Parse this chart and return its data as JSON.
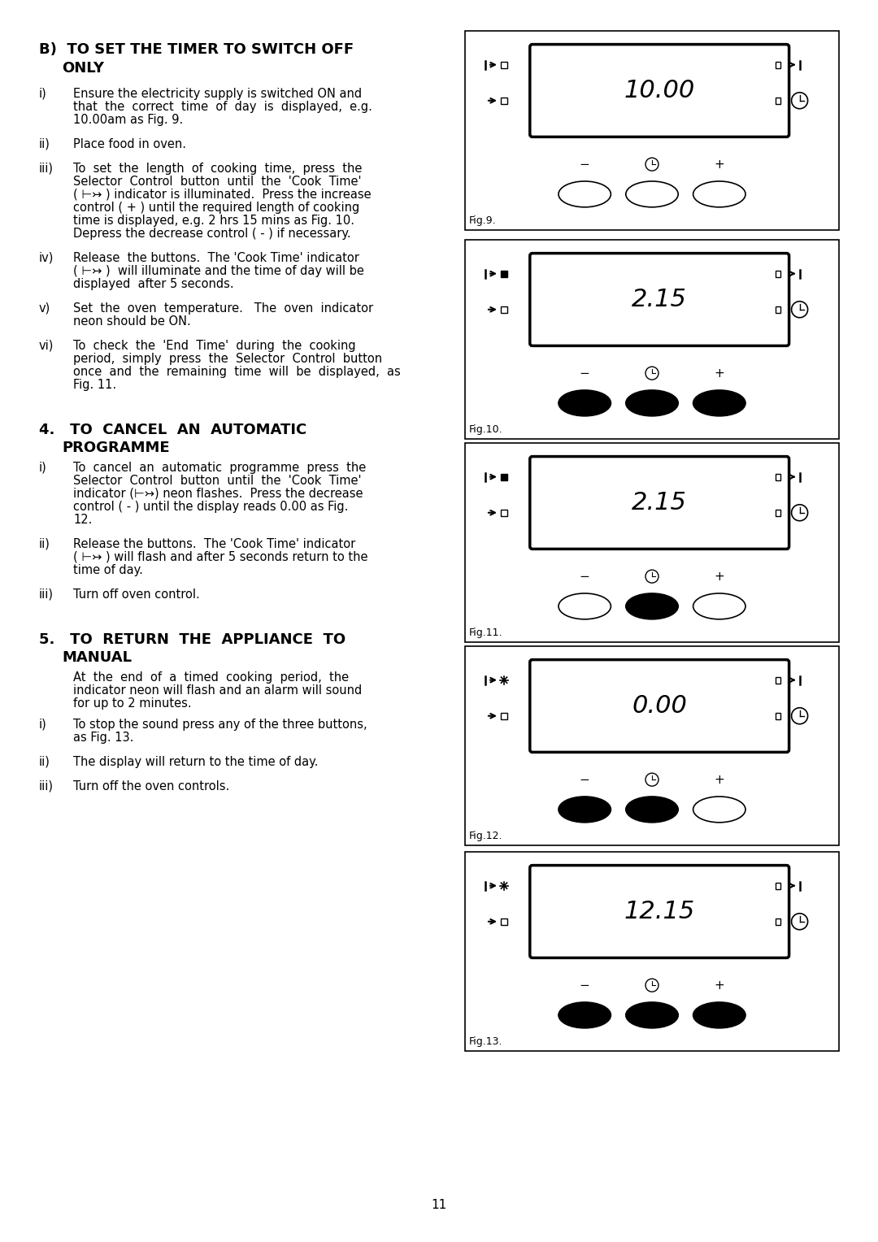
{
  "page_bg": "#ffffff",
  "fig_positions": [
    {
      "label": "Fig.9.",
      "display": "10.00",
      "buttons_filled": [
        false,
        false,
        false
      ],
      "left_top_filled": false,
      "left_top_flash": false,
      "row": 0
    },
    {
      "label": "Fig.10.",
      "display": "2.15",
      "buttons_filled": [
        true,
        true,
        true
      ],
      "left_top_filled": true,
      "left_top_flash": false,
      "row": 1
    },
    {
      "label": "Fig.11.",
      "display": "2.15",
      "buttons_filled": [
        false,
        true,
        false
      ],
      "left_top_filled": true,
      "left_top_flash": false,
      "row": 2
    },
    {
      "label": "Fig.12.",
      "display": "0.00",
      "buttons_filled": [
        true,
        true,
        false
      ],
      "left_top_filled": false,
      "left_top_flash": true,
      "row": 3
    },
    {
      "label": "Fig.13.",
      "display": "12.15",
      "buttons_filled": [
        true,
        true,
        true
      ],
      "left_top_filled": false,
      "left_top_flash": true,
      "row": 4
    }
  ]
}
